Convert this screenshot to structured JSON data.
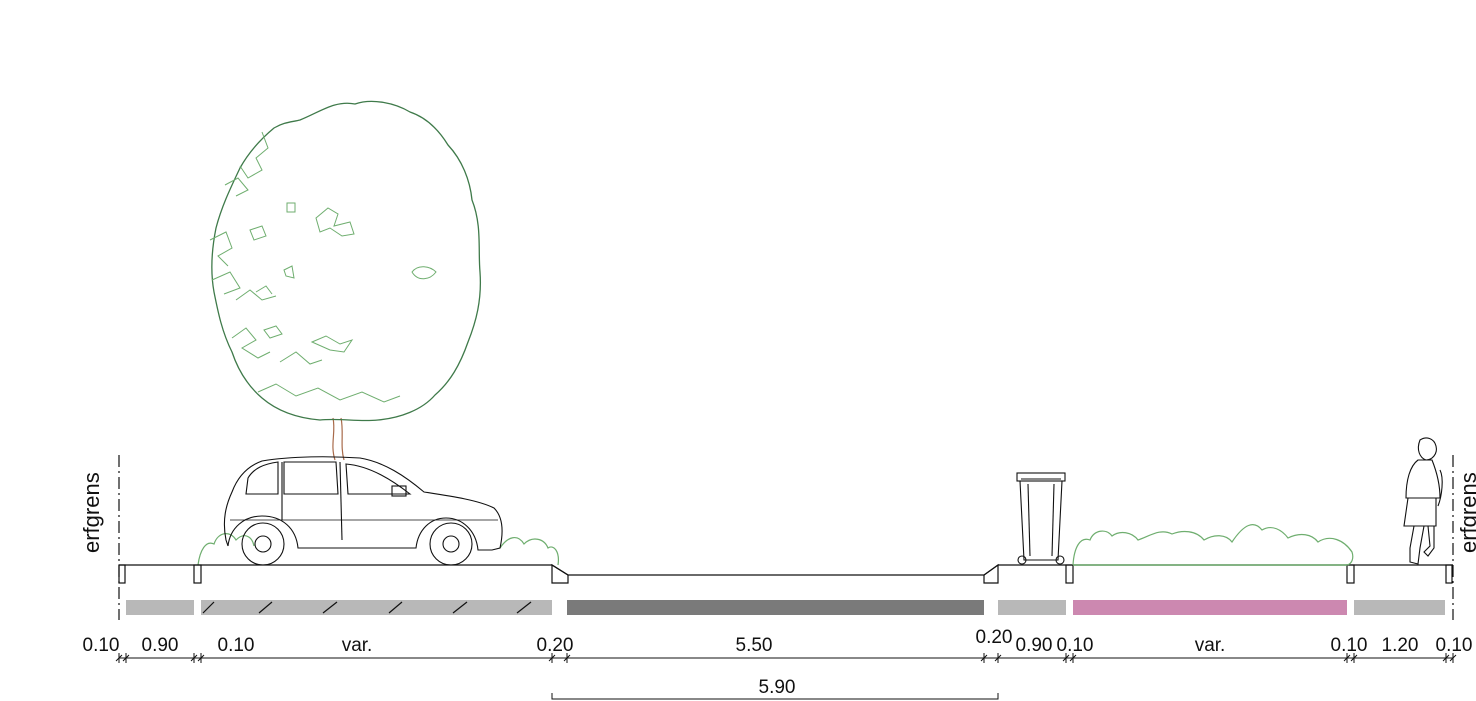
{
  "labels": {
    "property_line_left": "erfgrens",
    "property_line_right": "erfgrens"
  },
  "dimensions": {
    "d1": "0.10",
    "d2": "0.90",
    "d3": "0.10",
    "d4": "var.",
    "d5": "0.20",
    "d6": "5.50",
    "d7": "0.20",
    "d8": "0.90",
    "d9": "0.10",
    "d10": "var.",
    "d11": "0.10",
    "d12": "1.20",
    "d13": "0.10",
    "total": "5.90"
  },
  "colors": {
    "light_grey": "#b8b8b8",
    "dark_grey": "#7a7a7a",
    "pink": "#cc88b0",
    "tree_dark": "#3f7a4a",
    "tree_light": "#6fae6f",
    "trunk": "#a86a4a",
    "line": "#111111"
  }
}
